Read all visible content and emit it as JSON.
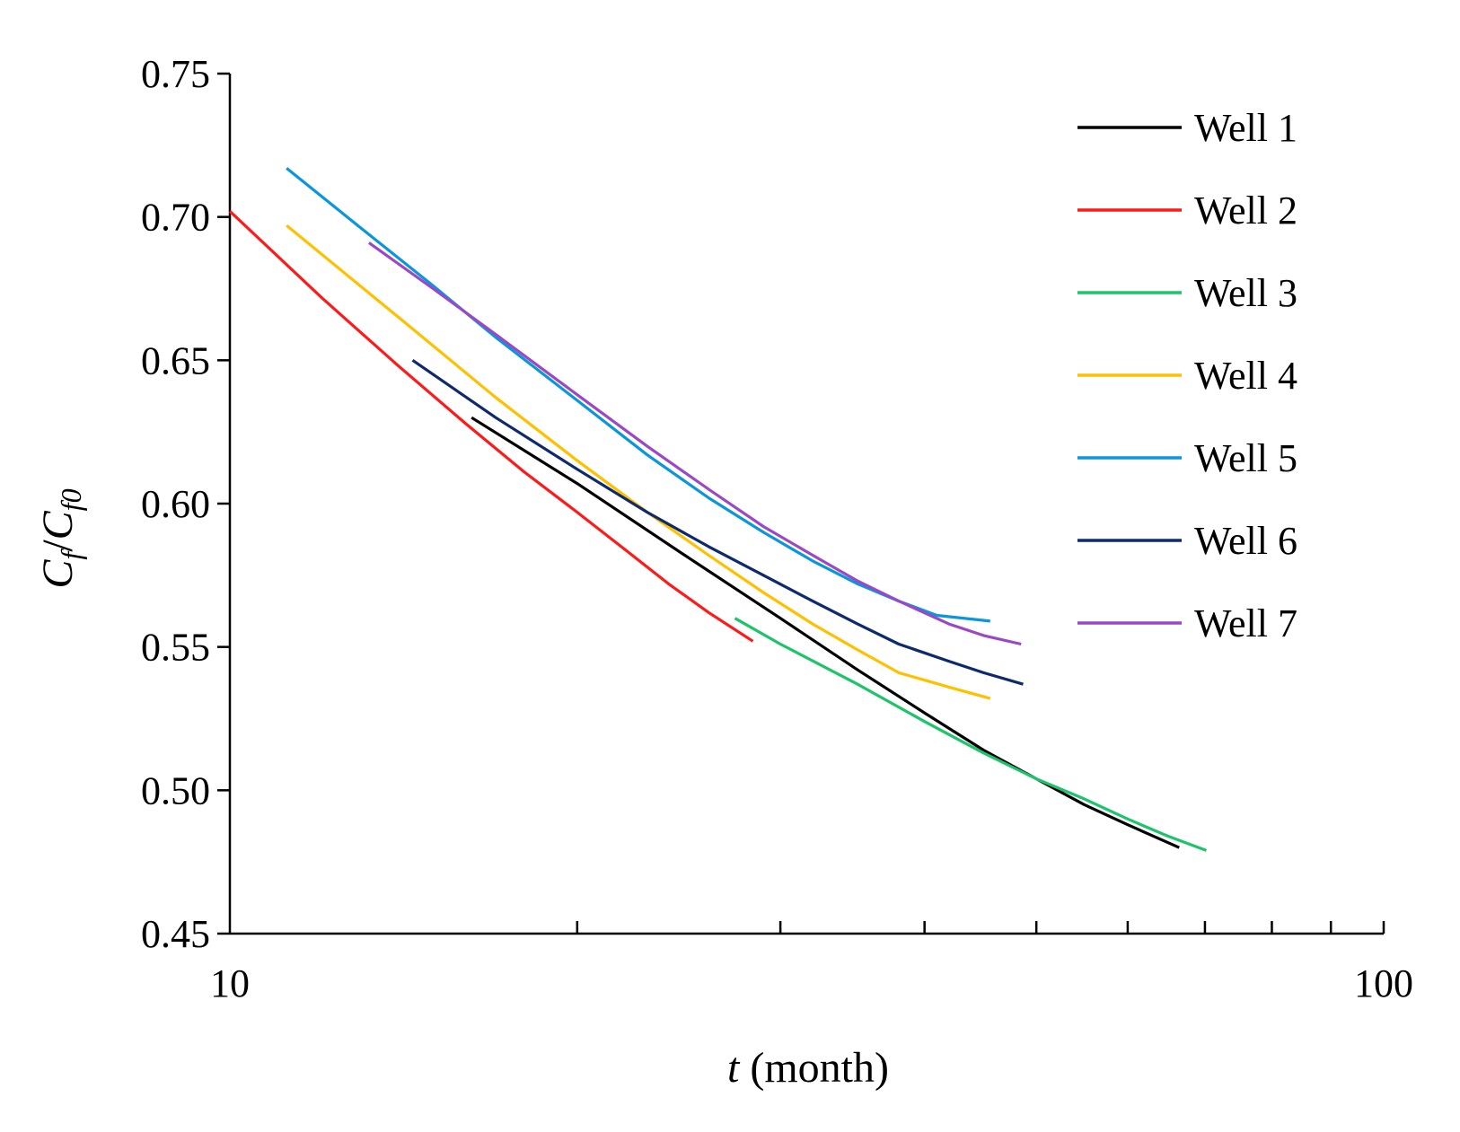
{
  "chart_data": {
    "type": "line",
    "title": "",
    "xlabel": {
      "italic": "t",
      "rest": " (month)"
    },
    "ylabel": {
      "c1": "C",
      "s1": "f",
      "slash": "/",
      "c2": "C",
      "s2": "f0"
    },
    "xscale": "log",
    "xlim": [
      10,
      100
    ],
    "ylim": [
      0.45,
      0.75
    ],
    "x_tick_labels": [
      "10",
      "100"
    ],
    "y_ticks": [
      0.45,
      0.5,
      0.55,
      0.6,
      0.65,
      0.7,
      0.75
    ],
    "y_tick_labels": [
      "0.45",
      "0.50",
      "0.55",
      "0.60",
      "0.65",
      "0.70",
      "0.75"
    ],
    "grid": false,
    "legend_position": "top-right",
    "series": [
      {
        "name": "Well 1",
        "color": "#000000",
        "x": [
          16.2,
          20,
          25,
          30,
          35,
          40,
          45,
          50,
          55,
          60,
          66.5
        ],
        "y": [
          0.63,
          0.607,
          0.581,
          0.56,
          0.542,
          0.527,
          0.514,
          0.504,
          0.495,
          0.488,
          0.48
        ]
      },
      {
        "name": "Well 2",
        "color": "#ff1a1a",
        "x": [
          10.0,
          12,
          14,
          16,
          18,
          20,
          22,
          24,
          26,
          28.4
        ],
        "y": [
          0.702,
          0.672,
          0.648,
          0.628,
          0.611,
          0.597,
          0.584,
          0.572,
          0.562,
          0.552
        ]
      },
      {
        "name": "Well 3",
        "color": "#1dc46a",
        "x": [
          27.4,
          30,
          35,
          40,
          45,
          50,
          55,
          60,
          65,
          70.2
        ],
        "y": [
          0.56,
          0.551,
          0.537,
          0.524,
          0.513,
          0.504,
          0.497,
          0.49,
          0.484,
          0.479
        ]
      },
      {
        "name": "Well 4",
        "color": "#ffc000",
        "x": [
          11.2,
          14,
          17,
          20,
          23,
          26,
          29,
          32,
          35,
          38,
          42,
          45.6
        ],
        "y": [
          0.697,
          0.665,
          0.637,
          0.615,
          0.597,
          0.582,
          0.569,
          0.558,
          0.549,
          0.541,
          0.536,
          0.532
        ]
      },
      {
        "name": "Well 5",
        "color": "#0a96dc",
        "x": [
          11.2,
          13,
          15,
          17,
          20,
          23,
          26,
          29,
          32,
          35,
          38,
          41,
          45.6
        ],
        "y": [
          0.717,
          0.696,
          0.676,
          0.658,
          0.636,
          0.617,
          0.602,
          0.59,
          0.58,
          0.572,
          0.566,
          0.561,
          0.559
        ]
      },
      {
        "name": "Well 6",
        "color": "#0e2a6e",
        "x": [
          14.4,
          17,
          20,
          23,
          26,
          29,
          32,
          35,
          38,
          42,
          45,
          48.7
        ],
        "y": [
          0.65,
          0.63,
          0.612,
          0.597,
          0.585,
          0.575,
          0.566,
          0.558,
          0.551,
          0.545,
          0.541,
          0.537
        ]
      },
      {
        "name": "Well 7",
        "color": "#9b48c6",
        "x": [
          13.2,
          15,
          17,
          20,
          23,
          26,
          29,
          32,
          35,
          38,
          42,
          45,
          48.5
        ],
        "y": [
          0.691,
          0.675,
          0.659,
          0.638,
          0.62,
          0.605,
          0.592,
          0.582,
          0.573,
          0.566,
          0.558,
          0.554,
          0.551
        ]
      }
    ]
  }
}
